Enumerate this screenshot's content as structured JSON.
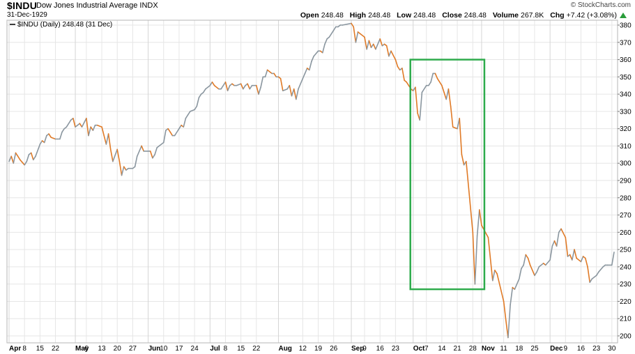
{
  "header": {
    "symbol": "$INDU",
    "name": "Dow Jones Industrial Average INDX",
    "date": "31-Dec-1929",
    "credit": "© StockCharts.com",
    "open_label": "Open",
    "open_value": "248.48",
    "high_label": "High",
    "high_value": "248.48",
    "low_label": "Low",
    "low_value": "248.48",
    "close_label": "Close",
    "close_value": "248.48",
    "volume_label": "Volume",
    "volume_value": "267.8K",
    "chg_label": "Chg",
    "chg_value": "+7.42 (+3.08%)",
    "chg_icon": "up-arrow-icon"
  },
  "legend": "$INDU (Daily) 248.48 (31 Dec)",
  "colors": {
    "up": "#8a969f",
    "down": "#e07a26",
    "highlight_box": "#2eab4c",
    "grid": "#e6e6e6",
    "chg_up": "#2a9d3a"
  },
  "chart_data": {
    "type": "line",
    "title": "$INDU Dow Jones Industrial Average INDX",
    "xlabel": "",
    "ylabel": "",
    "ylim": [
      195,
      385
    ],
    "y_ticks": [
      200,
      210,
      220,
      230,
      240,
      250,
      260,
      270,
      280,
      290,
      300,
      310,
      320,
      330,
      340,
      350,
      360,
      370,
      380
    ],
    "x_tick_labels": [
      {
        "label": "Apr",
        "date": "1929-04-01",
        "major": true
      },
      {
        "label": "8",
        "date": "1929-04-08"
      },
      {
        "label": "15",
        "date": "1929-04-15"
      },
      {
        "label": "22",
        "date": "1929-04-22"
      },
      {
        "label": "May",
        "date": "1929-05-01",
        "major": true
      },
      {
        "label": "6",
        "date": "1929-05-06"
      },
      {
        "label": "13",
        "date": "1929-05-13"
      },
      {
        "label": "20",
        "date": "1929-05-20"
      },
      {
        "label": "27",
        "date": "1929-05-27"
      },
      {
        "label": "Jun",
        "date": "1929-06-03",
        "major": true
      },
      {
        "label": "10",
        "date": "1929-06-10"
      },
      {
        "label": "17",
        "date": "1929-06-17"
      },
      {
        "label": "24",
        "date": "1929-06-24"
      },
      {
        "label": "Jul",
        "date": "1929-07-01",
        "major": true
      },
      {
        "label": "8",
        "date": "1929-07-08"
      },
      {
        "label": "15",
        "date": "1929-07-15"
      },
      {
        "label": "22",
        "date": "1929-07-22"
      },
      {
        "label": "Aug",
        "date": "1929-08-01",
        "major": true
      },
      {
        "label": "12",
        "date": "1929-08-12"
      },
      {
        "label": "19",
        "date": "1929-08-19"
      },
      {
        "label": "26",
        "date": "1929-08-26"
      },
      {
        "label": "Sep",
        "date": "1929-09-03",
        "major": true
      },
      {
        "label": "9",
        "date": "1929-09-09"
      },
      {
        "label": "16",
        "date": "1929-09-16"
      },
      {
        "label": "23",
        "date": "1929-09-23"
      },
      {
        "label": "Oct",
        "date": "1929-10-01",
        "major": true
      },
      {
        "label": "7",
        "date": "1929-10-07"
      },
      {
        "label": "14",
        "date": "1929-10-14"
      },
      {
        "label": "21",
        "date": "1929-10-21"
      },
      {
        "label": "28",
        "date": "1929-10-28"
      },
      {
        "label": "Nov",
        "date": "1929-11-01",
        "major": true
      },
      {
        "label": "11",
        "date": "1929-11-11"
      },
      {
        "label": "18",
        "date": "1929-11-18"
      },
      {
        "label": "25",
        "date": "1929-11-25"
      },
      {
        "label": "Dec",
        "date": "1929-12-02",
        "major": true
      },
      {
        "label": "9",
        "date": "1929-12-09"
      },
      {
        "label": "16",
        "date": "1929-12-16"
      },
      {
        "label": "23",
        "date": "1929-12-23"
      },
      {
        "label": "30",
        "date": "1929-12-30"
      }
    ],
    "series": [
      {
        "name": "$INDU (Daily)",
        "points": [
          [
            "1929-04-01",
            301
          ],
          [
            "1929-04-02",
            304
          ],
          [
            "1929-04-03",
            300
          ],
          [
            "1929-04-04",
            306
          ],
          [
            "1929-04-05",
            304
          ],
          [
            "1929-04-06",
            302
          ],
          [
            "1929-04-08",
            299
          ],
          [
            "1929-04-09",
            301
          ],
          [
            "1929-04-10",
            305
          ],
          [
            "1929-04-11",
            306
          ],
          [
            "1929-04-12",
            302
          ],
          [
            "1929-04-13",
            304
          ],
          [
            "1929-04-15",
            311
          ],
          [
            "1929-04-16",
            313
          ],
          [
            "1929-04-17",
            312
          ],
          [
            "1929-04-18",
            316
          ],
          [
            "1929-04-19",
            317
          ],
          [
            "1929-04-20",
            315
          ],
          [
            "1929-04-22",
            314
          ],
          [
            "1929-04-23",
            314
          ],
          [
            "1929-04-24",
            314
          ],
          [
            "1929-04-25",
            318
          ],
          [
            "1929-04-26",
            320
          ],
          [
            "1929-04-27",
            321
          ],
          [
            "1929-04-29",
            325
          ],
          [
            "1929-04-30",
            326
          ],
          [
            "1929-05-01",
            321
          ],
          [
            "1929-05-02",
            322
          ],
          [
            "1929-05-03",
            323
          ],
          [
            "1929-05-04",
            321
          ],
          [
            "1929-05-06",
            326
          ],
          [
            "1929-05-07",
            316
          ],
          [
            "1929-05-08",
            321
          ],
          [
            "1929-05-09",
            319
          ],
          [
            "1929-05-10",
            322
          ],
          [
            "1929-05-11",
            322
          ],
          [
            "1929-05-13",
            321
          ],
          [
            "1929-05-14",
            316
          ],
          [
            "1929-05-15",
            311
          ],
          [
            "1929-05-16",
            317
          ],
          [
            "1929-05-17",
            308
          ],
          [
            "1929-05-18",
            301
          ],
          [
            "1929-05-20",
            308
          ],
          [
            "1929-05-21",
            301
          ],
          [
            "1929-05-22",
            293
          ],
          [
            "1929-05-23",
            298
          ],
          [
            "1929-05-24",
            296
          ],
          [
            "1929-05-25",
            297
          ],
          [
            "1929-05-27",
            297
          ],
          [
            "1929-05-28",
            298
          ],
          [
            "1929-05-29",
            304
          ],
          [
            "1929-05-31",
            310
          ],
          [
            "1929-06-01",
            307
          ],
          [
            "1929-06-03",
            307
          ],
          [
            "1929-06-04",
            307
          ],
          [
            "1929-06-05",
            303
          ],
          [
            "1929-06-06",
            305
          ],
          [
            "1929-06-07",
            309
          ],
          [
            "1929-06-08",
            310
          ],
          [
            "1929-06-10",
            312
          ],
          [
            "1929-06-11",
            319
          ],
          [
            "1929-06-12",
            320
          ],
          [
            "1929-06-13",
            318
          ],
          [
            "1929-06-14",
            316
          ],
          [
            "1929-06-15",
            316
          ],
          [
            "1929-06-17",
            320
          ],
          [
            "1929-06-18",
            322
          ],
          [
            "1929-06-19",
            321
          ],
          [
            "1929-06-20",
            326
          ],
          [
            "1929-06-21",
            328
          ],
          [
            "1929-06-22",
            330
          ],
          [
            "1929-06-24",
            331
          ],
          [
            "1929-06-25",
            333
          ],
          [
            "1929-06-26",
            338
          ],
          [
            "1929-06-27",
            340
          ],
          [
            "1929-06-28",
            341
          ],
          [
            "1929-06-29",
            343
          ],
          [
            "1929-07-01",
            345
          ],
          [
            "1929-07-02",
            347
          ],
          [
            "1929-07-03",
            345
          ],
          [
            "1929-07-05",
            343
          ],
          [
            "1929-07-06",
            343
          ],
          [
            "1929-07-08",
            347
          ],
          [
            "1929-07-09",
            342
          ],
          [
            "1929-07-10",
            345
          ],
          [
            "1929-07-11",
            346
          ],
          [
            "1929-07-12",
            345
          ],
          [
            "1929-07-13",
            345
          ],
          [
            "1929-07-15",
            346
          ],
          [
            "1929-07-16",
            343
          ],
          [
            "1929-07-17",
            345
          ],
          [
            "1929-07-18",
            346
          ],
          [
            "1929-07-19",
            343
          ],
          [
            "1929-07-20",
            345
          ],
          [
            "1929-07-22",
            345
          ],
          [
            "1929-07-23",
            340
          ],
          [
            "1929-07-24",
            344
          ],
          [
            "1929-07-25",
            350
          ],
          [
            "1929-07-26",
            350
          ],
          [
            "1929-07-27",
            354
          ],
          [
            "1929-07-29",
            352
          ],
          [
            "1929-07-30",
            352
          ],
          [
            "1929-07-31",
            350
          ],
          [
            "1929-08-01",
            350
          ],
          [
            "1929-08-02",
            349
          ],
          [
            "1929-08-03",
            342
          ],
          [
            "1929-08-05",
            343
          ],
          [
            "1929-08-06",
            345
          ],
          [
            "1929-08-07",
            339
          ],
          [
            "1929-08-08",
            343
          ],
          [
            "1929-08-09",
            337
          ],
          [
            "1929-08-10",
            343
          ],
          [
            "1929-08-12",
            349
          ],
          [
            "1929-08-13",
            352
          ],
          [
            "1929-08-14",
            355
          ],
          [
            "1929-08-15",
            354
          ],
          [
            "1929-08-16",
            359
          ],
          [
            "1929-08-17",
            362
          ],
          [
            "1929-08-19",
            365
          ],
          [
            "1929-08-20",
            365
          ],
          [
            "1929-08-21",
            364
          ],
          [
            "1929-08-22",
            369
          ],
          [
            "1929-08-23",
            372
          ],
          [
            "1929-08-24",
            373
          ],
          [
            "1929-08-26",
            377
          ],
          [
            "1929-08-27",
            379
          ],
          [
            "1929-08-28",
            379
          ],
          [
            "1929-08-29",
            380
          ],
          [
            "1929-08-30",
            380
          ],
          [
            "1929-09-03",
            381
          ],
          [
            "1929-09-04",
            379
          ],
          [
            "1929-09-05",
            370
          ],
          [
            "1929-09-06",
            376
          ],
          [
            "1929-09-07",
            375
          ],
          [
            "1929-09-09",
            373
          ],
          [
            "1929-09-10",
            366
          ],
          [
            "1929-09-11",
            371
          ],
          [
            "1929-09-12",
            367
          ],
          [
            "1929-09-13",
            369
          ],
          [
            "1929-09-14",
            366
          ],
          [
            "1929-09-16",
            372
          ],
          [
            "1929-09-17",
            368
          ],
          [
            "1929-09-18",
            369
          ],
          [
            "1929-09-19",
            368
          ],
          [
            "1929-09-20",
            362
          ],
          [
            "1929-09-21",
            365
          ],
          [
            "1929-09-23",
            360
          ],
          [
            "1929-09-24",
            356
          ],
          [
            "1929-09-25",
            354
          ],
          [
            "1929-09-26",
            355
          ],
          [
            "1929-09-27",
            348
          ],
          [
            "1929-09-28",
            347
          ],
          [
            "1929-09-30",
            343
          ],
          [
            "1929-10-01",
            342
          ],
          [
            "1929-10-02",
            344
          ],
          [
            "1929-10-03",
            329
          ],
          [
            "1929-10-04",
            325
          ],
          [
            "1929-10-05",
            341
          ],
          [
            "1929-10-07",
            345
          ],
          [
            "1929-10-08",
            345
          ],
          [
            "1929-10-09",
            347
          ],
          [
            "1929-10-10",
            352
          ],
          [
            "1929-10-11",
            352
          ],
          [
            "1929-10-12",
            349
          ],
          [
            "1929-10-14",
            345
          ],
          [
            "1929-10-15",
            341
          ],
          [
            "1929-10-16",
            337
          ],
          [
            "1929-10-17",
            343
          ],
          [
            "1929-10-18",
            333
          ],
          [
            "1929-10-19",
            321
          ],
          [
            "1929-10-21",
            320
          ],
          [
            "1929-10-22",
            326
          ],
          [
            "1929-10-23",
            305
          ],
          [
            "1929-10-24",
            299
          ],
          [
            "1929-10-25",
            301
          ],
          [
            "1929-10-28",
            260
          ],
          [
            "1929-10-29",
            230
          ],
          [
            "1929-10-30",
            258
          ],
          [
            "1929-10-31",
            273
          ],
          [
            "1929-11-01",
            264
          ],
          [
            "1929-11-04",
            257
          ],
          [
            "1929-11-06",
            232
          ],
          [
            "1929-11-07",
            238
          ],
          [
            "1929-11-08",
            236
          ],
          [
            "1929-11-11",
            220
          ],
          [
            "1929-11-12",
            209
          ],
          [
            "1929-11-13",
            199
          ],
          [
            "1929-11-14",
            218
          ],
          [
            "1929-11-15",
            228
          ],
          [
            "1929-11-16",
            227
          ],
          [
            "1929-11-18",
            233
          ],
          [
            "1929-11-19",
            239
          ],
          [
            "1929-11-20",
            241
          ],
          [
            "1929-11-21",
            247
          ],
          [
            "1929-11-22",
            245
          ],
          [
            "1929-11-23",
            241
          ],
          [
            "1929-11-25",
            235
          ],
          [
            "1929-11-26",
            237
          ],
          [
            "1929-11-27",
            240
          ],
          [
            "1929-11-29",
            242
          ],
          [
            "1929-11-30",
            241
          ],
          [
            "1929-12-02",
            244
          ],
          [
            "1929-12-03",
            252
          ],
          [
            "1929-12-04",
            255
          ],
          [
            "1929-12-05",
            252
          ],
          [
            "1929-12-06",
            260
          ],
          [
            "1929-12-07",
            262
          ],
          [
            "1929-12-09",
            257
          ],
          [
            "1929-12-10",
            246
          ],
          [
            "1929-12-11",
            247
          ],
          [
            "1929-12-12",
            244
          ],
          [
            "1929-12-13",
            250
          ],
          [
            "1929-12-14",
            245
          ],
          [
            "1929-12-16",
            243
          ],
          [
            "1929-12-17",
            246
          ],
          [
            "1929-12-18",
            245
          ],
          [
            "1929-12-19",
            240
          ],
          [
            "1929-12-20",
            231
          ],
          [
            "1929-12-21",
            233
          ],
          [
            "1929-12-23",
            235
          ],
          [
            "1929-12-24",
            237
          ],
          [
            "1929-12-26",
            240
          ],
          [
            "1929-12-27",
            241
          ],
          [
            "1929-12-28",
            241
          ],
          [
            "1929-12-30",
            241
          ],
          [
            "1929-12-31",
            248.48
          ]
        ]
      }
    ],
    "annotations": [
      {
        "type": "highlight-rectangle",
        "x_start": "1929-10-01",
        "x_end": "1929-11-01",
        "y_low": 227,
        "y_high": 360
      }
    ],
    "grid": true,
    "legend_placement": "top-left",
    "y_axis_side": "right"
  }
}
